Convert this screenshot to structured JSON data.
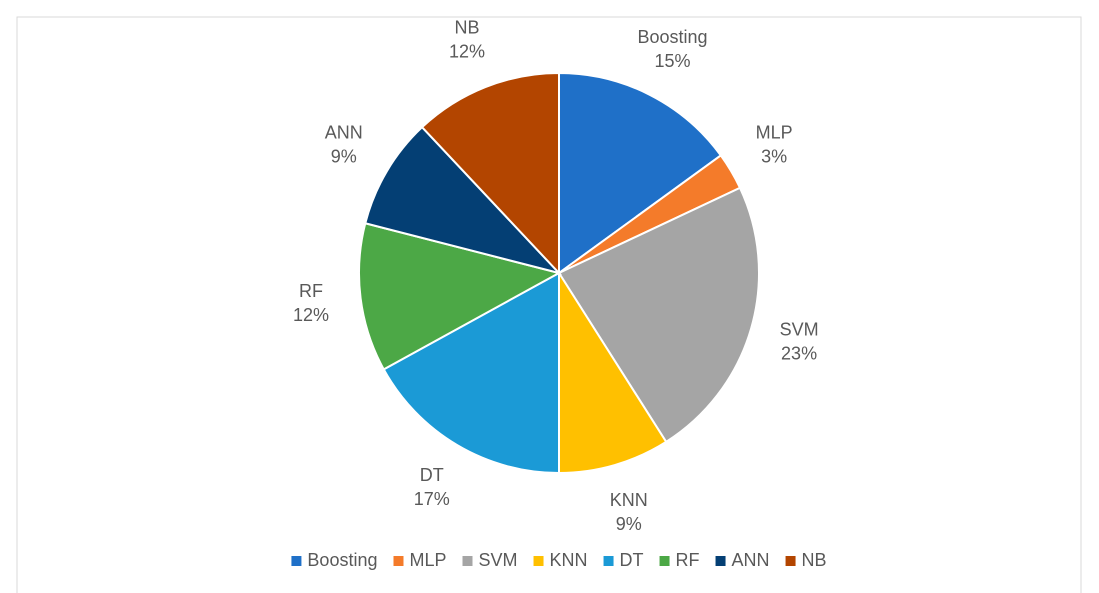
{
  "chart_data": {
    "type": "pie",
    "categories": [
      "Boosting",
      "MLP",
      "SVM",
      "KNN",
      "DT",
      "RF",
      "ANN",
      "NB"
    ],
    "values": [
      15,
      3,
      23,
      9,
      17,
      12,
      9,
      12
    ],
    "value_labels": [
      "15%",
      "3%",
      "23%",
      "9%",
      "17%",
      "12%",
      "9%",
      "12%"
    ],
    "colors": [
      "#1f70c8",
      "#f47b2a",
      "#a5a5a5",
      "#ffc000",
      "#1b9ad6",
      "#4ca846",
      "#043f74",
      "#b34500"
    ],
    "legend": "bottom"
  }
}
